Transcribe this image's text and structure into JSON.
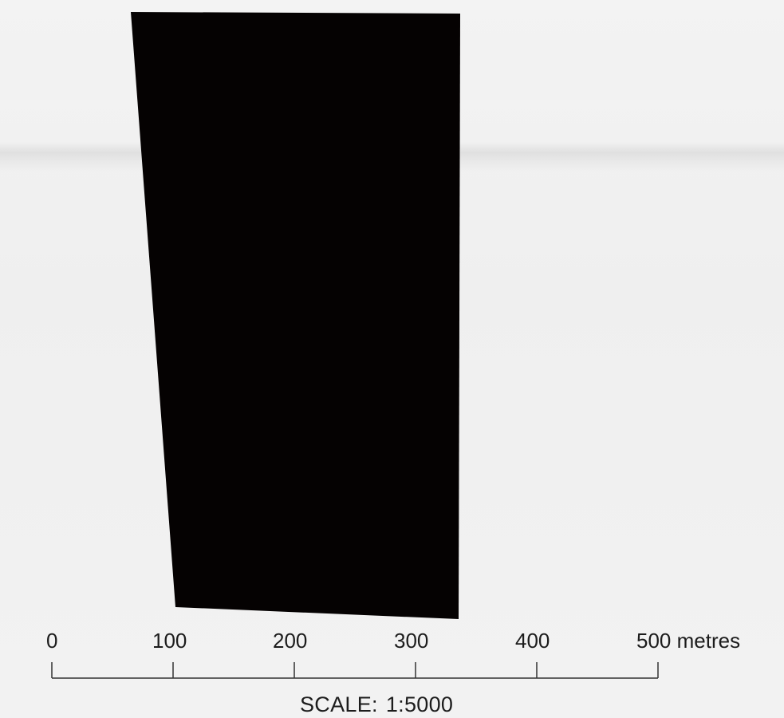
{
  "map": {
    "feature": "dark-rectangular-land-parcel",
    "feature_color": "#050202",
    "background_color": "#f1f1f1"
  },
  "scale_bar": {
    "ticks": [
      0,
      100,
      200,
      300,
      400,
      500
    ],
    "tick_labels": [
      "0",
      "100",
      "200",
      "300",
      "400",
      "500 metres"
    ],
    "units": "metres",
    "ratio_label": "SCALE:",
    "ratio_value": "1:5000"
  }
}
